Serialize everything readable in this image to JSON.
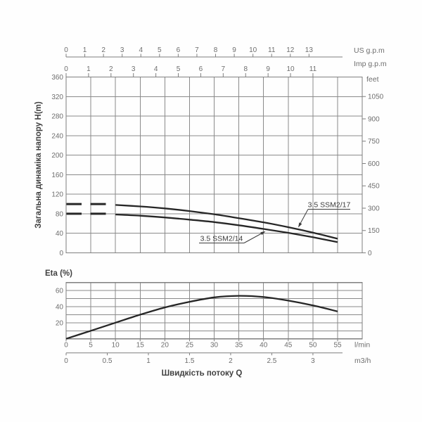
{
  "colors": {
    "grid": "#8a8a8a",
    "axis": "#7f7f7f",
    "curve": "#262626",
    "tick_text": "#6e6e6e",
    "title_text": "#414141",
    "annotation": "#3c3c3c",
    "background": "#fefefe"
  },
  "chart_data": [
    {
      "type": "line",
      "name": "pump-head-curves",
      "ylabel": "Загальна динаміка напору H(m)",
      "ylim_m": [
        0,
        360
      ],
      "y_ticks_m": [
        0,
        40,
        80,
        120,
        160,
        200,
        240,
        280,
        320,
        360
      ],
      "x_axis_lmin": {
        "min": 0,
        "max": 60,
        "gridline_step": 5
      },
      "grid": "on",
      "top_axes": [
        {
          "label": "US g.p.m",
          "ticks": [
            0,
            1,
            2,
            3,
            4,
            5,
            6,
            7,
            8,
            9,
            10,
            11,
            12,
            13
          ],
          "lmin_per_unit": 3.785
        },
        {
          "label": "Imp g.p.m",
          "ticks": [
            0,
            1,
            2,
            3,
            4,
            5,
            6,
            7,
            8,
            9,
            10,
            11
          ],
          "lmin_per_unit": 4.546
        }
      ],
      "right_axis": {
        "label": "feet",
        "ticks": [
          0,
          150,
          300,
          450,
          600,
          750,
          900,
          1050
        ],
        "ft_per_m": 3.2808
      },
      "series": [
        {
          "name": "3.5 SSM2/17",
          "x_lmin": [
            10,
            15,
            20,
            25,
            30,
            35,
            40,
            45,
            50,
            55
          ],
          "head_m": [
            98,
            95,
            91,
            85.5,
            79,
            71,
            62.5,
            52.5,
            41.5,
            29
          ],
          "min_flow_dash_head_m": 100,
          "min_flow_dash_range_lmin": [
            0,
            8
          ]
        },
        {
          "name": "3.5 SSM2/14",
          "x_lmin": [
            10,
            15,
            20,
            25,
            30,
            35,
            40,
            45,
            50,
            55
          ],
          "head_m": [
            78.5,
            76,
            72.5,
            68,
            63,
            56.5,
            49,
            41,
            32,
            22
          ],
          "min_flow_dash_head_m": 80,
          "min_flow_dash_range_lmin": [
            0,
            8
          ]
        }
      ],
      "annotations": [
        {
          "text": "3.5 SSM2/17",
          "points_to_series": "3.5 SSM2/17"
        },
        {
          "text": "3.5 SSM2/14",
          "points_to_series": "3.5 SSM2/14"
        }
      ]
    },
    {
      "type": "line",
      "name": "pump-efficiency-curve",
      "title": "Eta (%)",
      "ylim_pct": [
        0,
        70
      ],
      "y_ticks_pct": [
        20,
        40,
        60
      ],
      "grid_step_pct": 10,
      "grid": "on",
      "x_ticks_lmin": [
        0,
        5,
        10,
        15,
        20,
        25,
        30,
        35,
        40,
        45,
        50,
        55
      ],
      "x_unit_label": "l/min",
      "secondary_x_axis": {
        "label": "m3/h",
        "ticks": [
          0,
          0.5,
          1,
          1.5,
          2,
          2.5,
          3
        ],
        "lmin_per_unit": 16.667
      },
      "xlabel": "Швидкість потоку Q",
      "series": [
        {
          "name": "Eta",
          "x_lmin": [
            0,
            5,
            10,
            15,
            20,
            25,
            30,
            35,
            40,
            45,
            50,
            55
          ],
          "eta_pct": [
            0,
            10,
            20,
            30,
            39,
            46,
            51.5,
            53.5,
            52,
            47.5,
            41.5,
            34
          ]
        }
      ]
    }
  ]
}
